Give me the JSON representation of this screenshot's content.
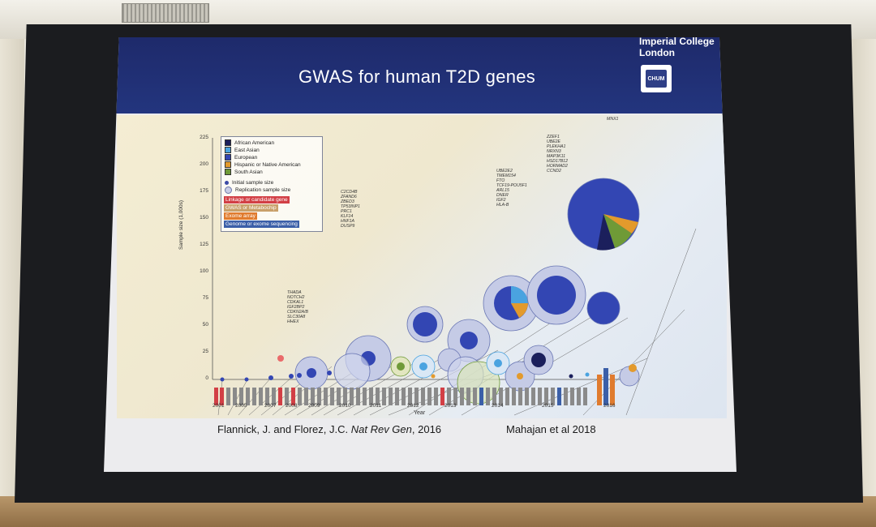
{
  "slide": {
    "title": "GWAS for human T2D genes",
    "logo": {
      "line1": "Imperial College",
      "line2": "London",
      "badge": "CHUM"
    },
    "citation_left_prefix": "Flannick, J. and Florez, J.C. ",
    "citation_left_journal": "Nat Rev Gen",
    "citation_left_suffix": ", 2016",
    "citation_right": "Mahajan et al 2018"
  },
  "figure": {
    "ylabel": "Sample size (1,000s)",
    "xlabel": "Year",
    "yticks": [
      "225",
      "200",
      "175",
      "150",
      "125",
      "100",
      "75",
      "50",
      "25",
      "0"
    ],
    "years": [
      "2001",
      "2005",
      "2007",
      "2008",
      "2009",
      "2010",
      "2011",
      "2012",
      "2013",
      "2014",
      "2015",
      "2016"
    ],
    "legend": {
      "ancestry": [
        {
          "label": "African American",
          "color": "#1b1f5c"
        },
        {
          "label": "East Asian",
          "color": "#4aa3e0"
        },
        {
          "label": "European",
          "color": "#3346b3"
        },
        {
          "label": "Hispanic or Native American",
          "color": "#e39a2c"
        },
        {
          "label": "South Asian",
          "color": "#6f9a37"
        }
      ],
      "initial": "Initial sample size",
      "replication": "Replication sample size",
      "types": [
        {
          "label": "Linkage or candidate gene",
          "color": "#d23f45"
        },
        {
          "label": "GWAS or Metabochip",
          "color": "#b07a3a"
        },
        {
          "label": "Exome array",
          "color": "#e07b2e"
        },
        {
          "label": "Genome or exome sequencing",
          "color": "#3b5fa8"
        }
      ]
    },
    "gene_labels": [
      {
        "text": "MNX1"
      },
      {
        "text": "ZZEF1\nUBE2E\nPLEKHA1\nNRXN3\nMAP3K11\nHSD17B12\nHORMAD2\nCCND2"
      },
      {
        "text": "UBE2E2\nTMEM154\nFTO\nTCF19-POU5F1\nARL15\nDNER\nIGF2\nHLA-B"
      },
      {
        "text": "THADA\nNOTCH2\nCDKAL1\nIGF2BP2\nCDKN2A/B\nSLC30A8\nHHEX"
      },
      {
        "text": "C2CD4B\nZFAND6\nZBED3\nTP53INP1\nPRC1\nKLF14\nHNF1A\nDUSP9"
      }
    ]
  }
}
